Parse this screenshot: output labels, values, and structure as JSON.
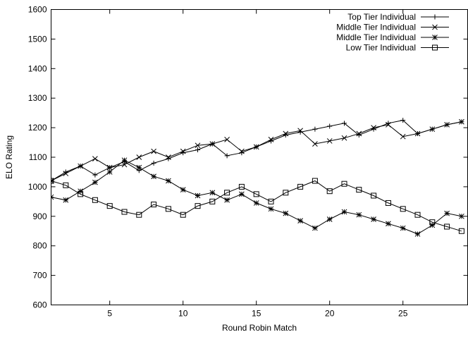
{
  "chart_data": {
    "type": "line",
    "title": "",
    "xlabel": "Round Robin Match",
    "ylabel": "ELO Rating",
    "xlim": [
      1,
      29
    ],
    "ylim": [
      600,
      1600
    ],
    "x_ticks": [
      5,
      10,
      15,
      20,
      25
    ],
    "y_ticks": [
      600,
      700,
      800,
      900,
      1000,
      1100,
      1200,
      1300,
      1400,
      1500,
      1600
    ],
    "grid": false,
    "legend_position": "top-right",
    "x": [
      1,
      2,
      3,
      4,
      5,
      6,
      7,
      8,
      9,
      10,
      11,
      12,
      13,
      14,
      15,
      16,
      17,
      18,
      19,
      20,
      21,
      22,
      23,
      24,
      25,
      26,
      27,
      28,
      29
    ],
    "series": [
      {
        "name": "Top Tier Individual",
        "marker": "plus",
        "values": [
          1020,
          1050,
          1070,
          1040,
          1065,
          1085,
          1055,
          1080,
          1095,
          1115,
          1125,
          1145,
          1105,
          1115,
          1135,
          1155,
          1175,
          1185,
          1195,
          1205,
          1215,
          1175,
          1195,
          1215,
          1225,
          1180,
          1195,
          1210,
          1220
        ]
      },
      {
        "name": "Middle Tier Individual",
        "marker": "cross",
        "values": [
          1020,
          1045,
          1070,
          1095,
          1065,
          1075,
          1100,
          1120,
          1100,
          1120,
          1140,
          1145,
          1160,
          1120,
          1135,
          1160,
          1180,
          1190,
          1145,
          1155,
          1165,
          1180,
          1200,
          1210,
          1170,
          1180,
          1195,
          1210,
          1220
        ]
      },
      {
        "name": "Middle Tier Individual",
        "marker": "asterisk",
        "values": [
          965,
          955,
          985,
          1015,
          1050,
          1090,
          1065,
          1035,
          1020,
          990,
          970,
          980,
          955,
          975,
          945,
          925,
          910,
          885,
          860,
          890,
          915,
          905,
          890,
          875,
          860,
          840,
          870,
          910,
          900
        ]
      },
      {
        "name": "Low Tier Individual",
        "marker": "square",
        "values": [
          1020,
          1005,
          975,
          955,
          935,
          915,
          905,
          940,
          925,
          905,
          935,
          950,
          980,
          1000,
          975,
          950,
          980,
          1000,
          1020,
          985,
          1010,
          990,
          970,
          945,
          925,
          905,
          880,
          865,
          850
        ]
      }
    ]
  }
}
